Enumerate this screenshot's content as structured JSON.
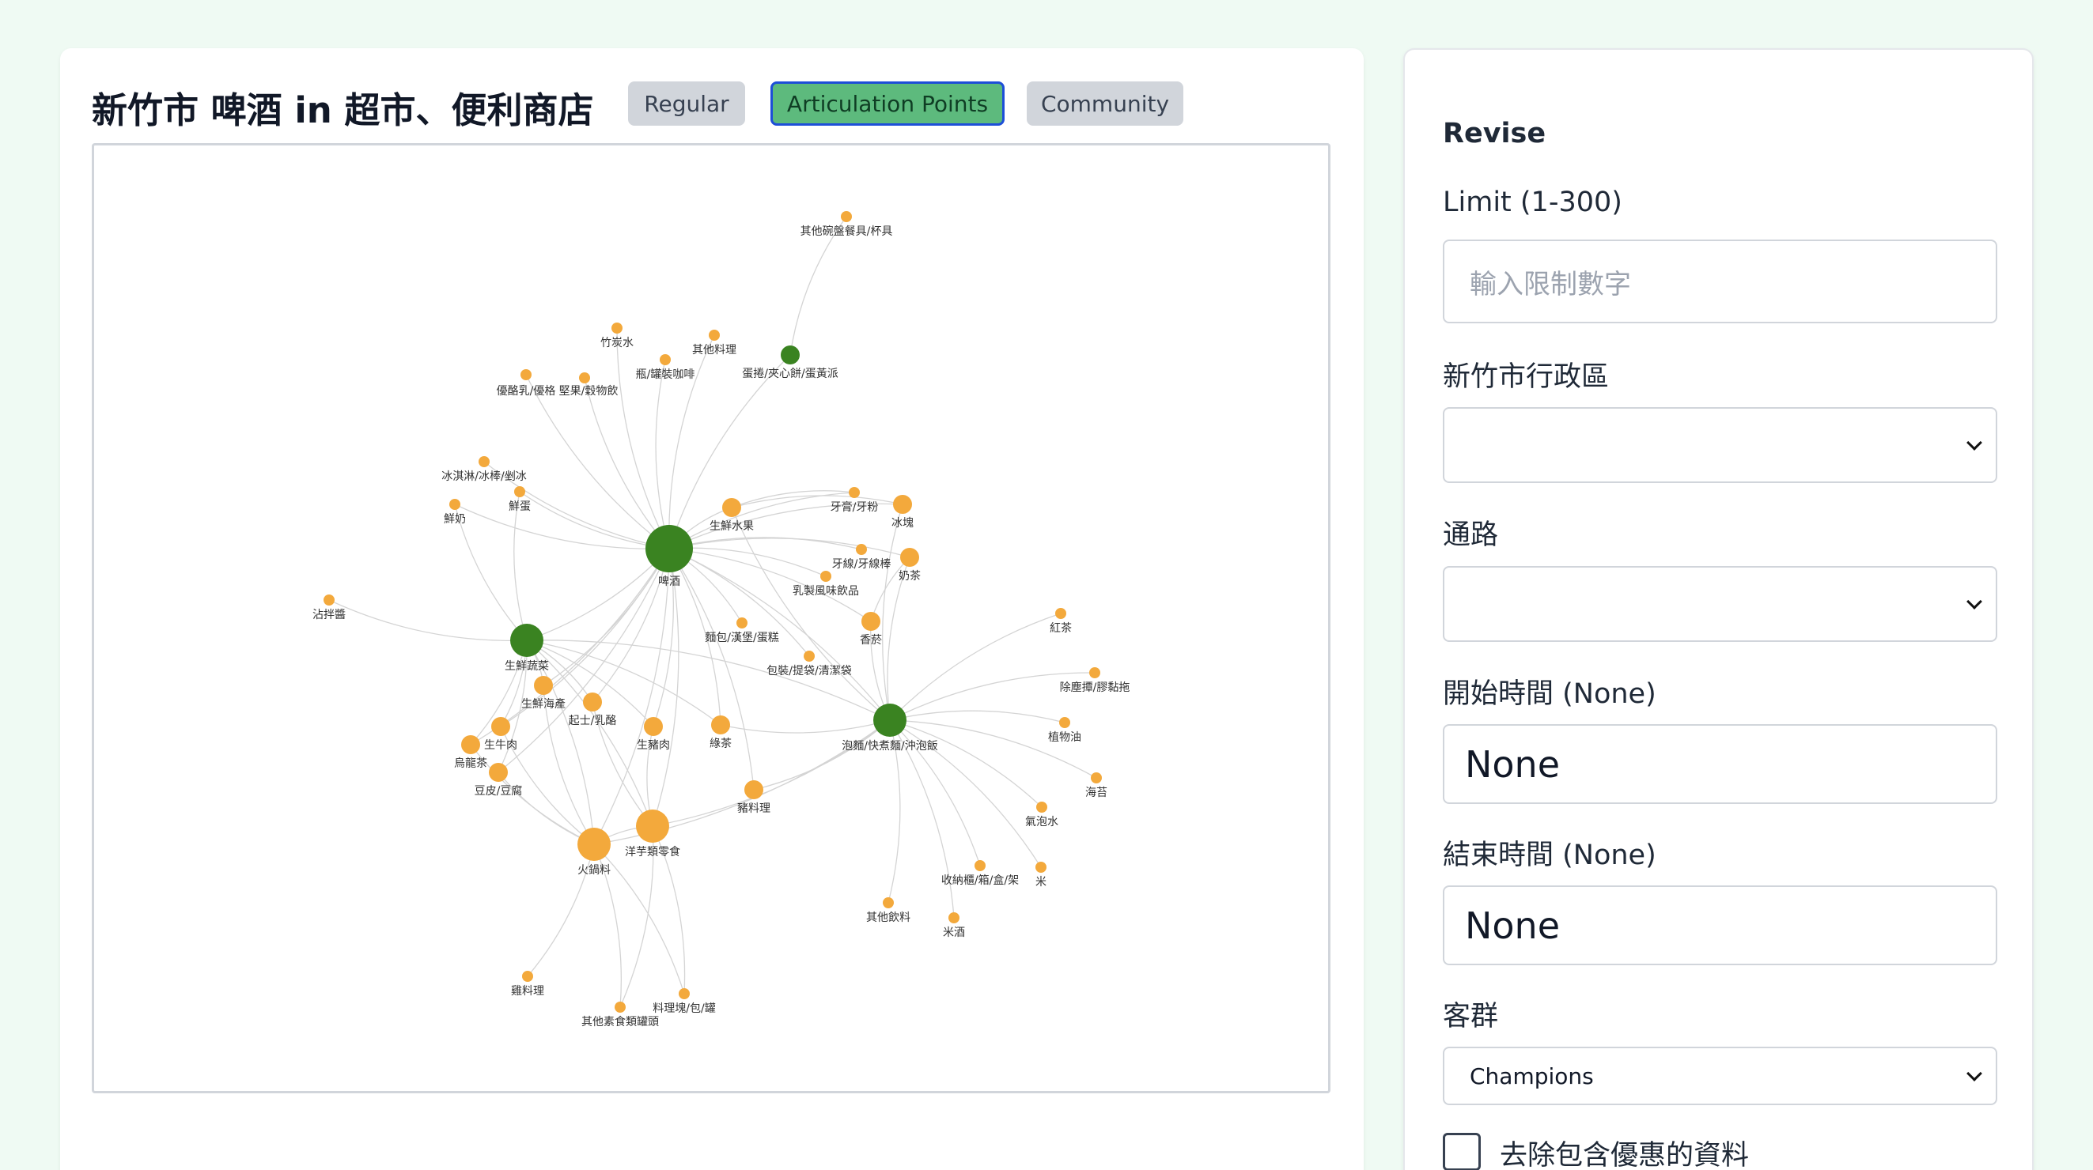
{
  "header": {
    "title": "新竹市 啤酒 in 超市、便利商店",
    "modes": [
      {
        "label": "Regular",
        "active": false
      },
      {
        "label": "Articulation Points",
        "active": true
      },
      {
        "label": "Community",
        "active": false
      }
    ]
  },
  "colors": {
    "articulation_node": "#3a8321",
    "regular_node": "#f3a93c",
    "edge": "#d4d4d4",
    "active_button": "#5dba7d"
  },
  "graph": {
    "nodes": [
      {
        "id": "其他碗盤餐具/杯具",
        "size": "small",
        "type": "regular"
      },
      {
        "id": "竹炭水",
        "size": "small",
        "type": "regular"
      },
      {
        "id": "其他料理",
        "size": "small",
        "type": "regular"
      },
      {
        "id": "蛋捲/夾心餅/蛋黃派",
        "size": "medium",
        "type": "articulation"
      },
      {
        "id": "瓶/罐裝咖啡",
        "size": "small",
        "type": "regular"
      },
      {
        "id": "優酪乳/優格",
        "size": "small",
        "type": "regular"
      },
      {
        "id": "堅果/穀物飲",
        "size": "small",
        "type": "regular"
      },
      {
        "id": "冰淇淋/冰棒/剉冰",
        "size": "small",
        "type": "regular"
      },
      {
        "id": "鮮蛋",
        "size": "small",
        "type": "regular"
      },
      {
        "id": "鮮奶",
        "size": "small",
        "type": "regular"
      },
      {
        "id": "啤酒",
        "size": "xlarge",
        "type": "articulation"
      },
      {
        "id": "生鮮水果",
        "size": "medium",
        "type": "regular"
      },
      {
        "id": "牙膏/牙粉",
        "size": "small",
        "type": "regular"
      },
      {
        "id": "冰塊",
        "size": "medium",
        "type": "regular"
      },
      {
        "id": "牙線/牙線棒",
        "size": "small",
        "type": "regular"
      },
      {
        "id": "奶茶",
        "size": "medium",
        "type": "regular"
      },
      {
        "id": "乳製風味飲品",
        "size": "small",
        "type": "regular"
      },
      {
        "id": "沾拌醬",
        "size": "small",
        "type": "regular"
      },
      {
        "id": "生鮮蔬菜",
        "size": "large",
        "type": "articulation"
      },
      {
        "id": "麵包/漢堡/蛋糕",
        "size": "small",
        "type": "regular"
      },
      {
        "id": "香菸",
        "size": "medium",
        "type": "regular"
      },
      {
        "id": "紅茶",
        "size": "small",
        "type": "regular"
      },
      {
        "id": "包裝/提袋/清潔袋",
        "size": "small",
        "type": "regular"
      },
      {
        "id": "除塵撢/膠黏拖",
        "size": "small",
        "type": "regular"
      },
      {
        "id": "生鮮海產",
        "size": "medium",
        "type": "regular"
      },
      {
        "id": "起士/乳酪",
        "size": "medium",
        "type": "regular"
      },
      {
        "id": "生牛肉",
        "size": "medium",
        "type": "regular"
      },
      {
        "id": "烏龍茶",
        "size": "medium",
        "type": "regular"
      },
      {
        "id": "生豬肉",
        "size": "medium",
        "type": "regular"
      },
      {
        "id": "綠茶",
        "size": "medium",
        "type": "regular"
      },
      {
        "id": "泡麵/快煮麵/沖泡飯",
        "size": "large",
        "type": "articulation"
      },
      {
        "id": "植物油",
        "size": "small",
        "type": "regular"
      },
      {
        "id": "豆皮/豆腐",
        "size": "medium",
        "type": "regular"
      },
      {
        "id": "海苔",
        "size": "small",
        "type": "regular"
      },
      {
        "id": "豬料理",
        "size": "medium",
        "type": "regular"
      },
      {
        "id": "洋芋類零食",
        "size": "large",
        "type": "regular"
      },
      {
        "id": "氣泡水",
        "size": "small",
        "type": "regular"
      },
      {
        "id": "火鍋料",
        "size": "large",
        "type": "regular"
      },
      {
        "id": "收納櫃/箱/盒/架",
        "size": "small",
        "type": "regular"
      },
      {
        "id": "米",
        "size": "small",
        "type": "regular"
      },
      {
        "id": "其他飲料",
        "size": "small",
        "type": "regular"
      },
      {
        "id": "米酒",
        "size": "small",
        "type": "regular"
      },
      {
        "id": "雞料理",
        "size": "small",
        "type": "regular"
      },
      {
        "id": "料理塊/包/罐",
        "size": "small",
        "type": "regular"
      },
      {
        "id": "其他素食類罐頭",
        "size": "small",
        "type": "regular"
      }
    ],
    "edges": [
      [
        "啤酒",
        "竹炭水"
      ],
      [
        "啤酒",
        "其他料理"
      ],
      [
        "啤酒",
        "蛋捲/夾心餅/蛋黃派"
      ],
      [
        "啤酒",
        "瓶/罐裝咖啡"
      ],
      [
        "啤酒",
        "優酪乳/優格"
      ],
      [
        "啤酒",
        "堅果/穀物飲"
      ],
      [
        "啤酒",
        "冰淇淋/冰棒/剉冰"
      ],
      [
        "啤酒",
        "鮮蛋"
      ],
      [
        "啤酒",
        "鮮奶"
      ],
      [
        "啤酒",
        "生鮮水果"
      ],
      [
        "啤酒",
        "牙膏/牙粉"
      ],
      [
        "啤酒",
        "冰塊"
      ],
      [
        "啤酒",
        "牙線/牙線棒"
      ],
      [
        "啤酒",
        "奶茶"
      ],
      [
        "啤酒",
        "乳製風味飲品"
      ],
      [
        "啤酒",
        "生鮮蔬菜"
      ],
      [
        "啤酒",
        "麵包/漢堡/蛋糕"
      ],
      [
        "啤酒",
        "香菸"
      ],
      [
        "啤酒",
        "包裝/提袋/清潔袋"
      ],
      [
        "啤酒",
        "生鮮海產"
      ],
      [
        "啤酒",
        "起士/乳酪"
      ],
      [
        "啤酒",
        "生牛肉"
      ],
      [
        "啤酒",
        "烏龍茶"
      ],
      [
        "啤酒",
        "生豬肉"
      ],
      [
        "啤酒",
        "綠茶"
      ],
      [
        "啤酒",
        "泡麵/快煮麵/沖泡飯"
      ],
      [
        "啤酒",
        "豆皮/豆腐"
      ],
      [
        "啤酒",
        "豬料理"
      ],
      [
        "啤酒",
        "洋芋類零食"
      ],
      [
        "啤酒",
        "火鍋料"
      ],
      [
        "蛋捲/夾心餅/蛋黃派",
        "其他碗盤餐具/杯具"
      ],
      [
        "生鮮蔬菜",
        "沾拌醬"
      ],
      [
        "生鮮蔬菜",
        "生鮮海產"
      ],
      [
        "生鮮蔬菜",
        "起士/乳酪"
      ],
      [
        "生鮮蔬菜",
        "生牛肉"
      ],
      [
        "生鮮蔬菜",
        "烏龍茶"
      ],
      [
        "生鮮蔬菜",
        "生豬肉"
      ],
      [
        "生鮮蔬菜",
        "綠茶"
      ],
      [
        "生鮮蔬菜",
        "泡麵/快煮麵/沖泡飯"
      ],
      [
        "生鮮蔬菜",
        "豆皮/豆腐"
      ],
      [
        "生鮮蔬菜",
        "洋芋類零食"
      ],
      [
        "生鮮蔬菜",
        "火鍋料"
      ],
      [
        "生鮮蔬菜",
        "鮮奶"
      ],
      [
        "生鮮蔬菜",
        "鮮蛋"
      ],
      [
        "泡麵/快煮麵/沖泡飯",
        "紅茶"
      ],
      [
        "泡麵/快煮麵/沖泡飯",
        "除塵撢/膠黏拖"
      ],
      [
        "泡麵/快煮麵/沖泡飯",
        "植物油"
      ],
      [
        "泡麵/快煮麵/沖泡飯",
        "海苔"
      ],
      [
        "泡麵/快煮麵/沖泡飯",
        "氣泡水"
      ],
      [
        "泡麵/快煮麵/沖泡飯",
        "收納櫃/箱/盒/架"
      ],
      [
        "泡麵/快煮麵/沖泡飯",
        "米"
      ],
      [
        "泡麵/快煮麵/沖泡飯",
        "其他飲料"
      ],
      [
        "泡麵/快煮麵/沖泡飯",
        "米酒"
      ],
      [
        "泡麵/快煮麵/沖泡飯",
        "洋芋類零食"
      ],
      [
        "泡麵/快煮麵/沖泡飯",
        "綠茶"
      ],
      [
        "泡麵/快煮麵/沖泡飯",
        "香菸"
      ],
      [
        "泡麵/快煮麵/沖泡飯",
        "奶茶"
      ],
      [
        "泡麵/快煮麵/沖泡飯",
        "火鍋料"
      ],
      [
        "泡麵/快煮麵/沖泡飯",
        "豬料理"
      ],
      [
        "泡麵/快煮麵/沖泡飯",
        "生鮮水果"
      ],
      [
        "泡麵/快煮麵/沖泡飯",
        "冰塊"
      ],
      [
        "火鍋料",
        "雞料理"
      ],
      [
        "火鍋料",
        "料理塊/包/罐"
      ],
      [
        "火鍋料",
        "其他素食類罐頭"
      ],
      [
        "洋芋類零食",
        "料理塊/包/罐"
      ],
      [
        "洋芋類零食",
        "其他素食類罐頭"
      ],
      [
        "火鍋料",
        "洋芋類零食"
      ],
      [
        "火鍋料",
        "生牛肉"
      ],
      [
        "火鍋料",
        "豆皮/豆腐"
      ],
      [
        "火鍋料",
        "烏龍茶"
      ],
      [
        "洋芋類零食",
        "生豬肉"
      ],
      [
        "洋芋類零食",
        "起士/乳酪"
      ],
      [
        "火鍋料",
        "生鮮海產"
      ],
      [
        "生鮮水果",
        "牙膏/牙粉"
      ],
      [
        "生鮮水果",
        "冰塊"
      ],
      [
        "香菸",
        "奶茶"
      ]
    ]
  },
  "sidebar": {
    "section_title": "Revise",
    "limit_label": "Limit (1-300)",
    "limit_placeholder": "輸入限制數字",
    "district_label": "新竹市行政區",
    "district_value": "",
    "channel_label": "通路",
    "channel_value": "",
    "start_label": "開始時間 (None)",
    "start_value": "None",
    "end_label": "結束時間 (None)",
    "end_value": "None",
    "segment_label": "客群",
    "segment_value": "Champions",
    "exclude_promo_label": "去除包含優惠的資料",
    "exclude_promo_checked": false
  }
}
